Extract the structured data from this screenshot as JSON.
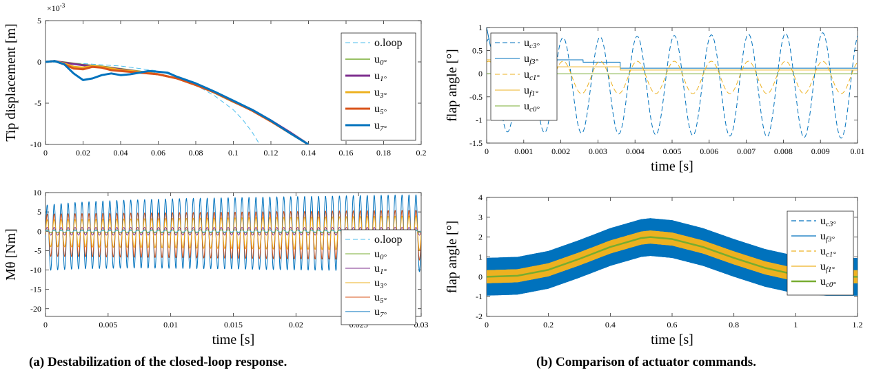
{
  "figure": {
    "caption_a": "(a) Destabilization of the closed-loop response.",
    "caption_b": "(b) Comparison of actuator commands."
  },
  "colors": {
    "o_loop": "#4DBEEE",
    "u0": "#77AC30",
    "u1": "#7E2F8E",
    "u3": "#EDB120",
    "u5": "#D95319",
    "u7": "#0072BD",
    "uc3": "#0072BD",
    "uf3": "#0072BD",
    "uc1": "#EDB120",
    "uf1": "#EDB120",
    "uc0": "#77AC30"
  },
  "chart_data": [
    {
      "id": "a-top",
      "type": "line",
      "xlabel": "",
      "ylabel": "Tip displacement [m]",
      "exponent_label": "×10",
      "exponent_power": "-3",
      "xlim": [
        0,
        0.2
      ],
      "ylim": [
        -10,
        5
      ],
      "xticks": [
        "0",
        "0.02",
        "0.04",
        "0.06",
        "0.08",
        "0.1",
        "0.12",
        "0.14",
        "0.16",
        "0.18",
        "0.2"
      ],
      "yticks": [
        "5",
        "0",
        "-5",
        "-10"
      ],
      "grid": false,
      "legend_position": "top-right",
      "series": [
        {
          "name": "o.loop",
          "color_key": "o_loop",
          "dash": true,
          "width": 1,
          "x": [
            0,
            0.02,
            0.04,
            0.06,
            0.07,
            0.08,
            0.09,
            0.1,
            0.105,
            0.11,
            0.114
          ],
          "y": [
            0,
            -0.2,
            -0.5,
            -1.1,
            -1.8,
            -2.8,
            -4.1,
            -5.8,
            -7.0,
            -8.5,
            -10
          ]
        },
        {
          "name": "u0°",
          "color_key": "u0",
          "dash": false,
          "width": 1.5,
          "x": [
            0,
            0.005,
            0.01,
            0.02,
            0.03,
            0.04,
            0.05,
            0.06,
            0.07,
            0.08,
            0.09,
            0.1,
            0.11,
            0.12,
            0.13,
            0.14
          ],
          "y": [
            0,
            0.1,
            0,
            -0.3,
            -0.5,
            -0.8,
            -1.1,
            -1.5,
            -2.0,
            -2.8,
            -3.8,
            -4.9,
            -5.9,
            -7.2,
            -8.6,
            -10
          ]
        },
        {
          "name": "u1°",
          "color_key": "u1",
          "dash": false,
          "width": 3,
          "x": [
            0,
            0.005,
            0.01,
            0.02,
            0.03,
            0.04,
            0.05,
            0.06,
            0.07,
            0.08,
            0.09,
            0.1,
            0.11,
            0.12,
            0.13,
            0.14
          ],
          "y": [
            0,
            0.1,
            -0.1,
            -0.4,
            -0.6,
            -0.9,
            -1.2,
            -1.5,
            -2.0,
            -2.8,
            -3.7,
            -4.8,
            -5.8,
            -7.1,
            -8.5,
            -10
          ]
        },
        {
          "name": "u3°",
          "color_key": "u3",
          "dash": false,
          "width": 3,
          "x": [
            0,
            0.005,
            0.01,
            0.015,
            0.02,
            0.025,
            0.03,
            0.04,
            0.05,
            0.06,
            0.07,
            0.08,
            0.09,
            0.1,
            0.11,
            0.12,
            0.13,
            0.14
          ],
          "y": [
            0,
            0.1,
            -0.2,
            -0.6,
            -0.7,
            -0.5,
            -0.6,
            -1.0,
            -1.2,
            -1.5,
            -2.0,
            -2.8,
            -3.7,
            -4.8,
            -5.9,
            -7.2,
            -8.6,
            -10
          ]
        },
        {
          "name": "u5°",
          "color_key": "u5",
          "dash": false,
          "width": 3,
          "x": [
            0,
            0.005,
            0.01,
            0.015,
            0.02,
            0.025,
            0.03,
            0.035,
            0.04,
            0.05,
            0.06,
            0.07,
            0.08,
            0.09,
            0.1,
            0.11,
            0.12,
            0.13,
            0.14
          ],
          "y": [
            0,
            0.1,
            -0.3,
            -0.8,
            -0.9,
            -0.6,
            -0.7,
            -1.0,
            -1.1,
            -1.3,
            -1.5,
            -2.0,
            -2.8,
            -3.7,
            -4.8,
            -5.9,
            -7.2,
            -8.6,
            -10
          ]
        },
        {
          "name": "u7°",
          "color_key": "u7",
          "dash": false,
          "width": 3,
          "x": [
            0,
            0.005,
            0.01,
            0.015,
            0.02,
            0.025,
            0.03,
            0.035,
            0.04,
            0.045,
            0.05,
            0.055,
            0.06,
            0.065,
            0.07,
            0.08,
            0.09,
            0.1,
            0.11,
            0.12,
            0.13,
            0.14
          ],
          "y": [
            0,
            0.1,
            -0.3,
            -1.4,
            -2.2,
            -2.0,
            -1.6,
            -1.4,
            -1.6,
            -1.5,
            -1.3,
            -1.1,
            -1.2,
            -1.3,
            -1.8,
            -2.6,
            -3.6,
            -4.7,
            -5.8,
            -7.1,
            -8.6,
            -10
          ]
        }
      ]
    },
    {
      "id": "a-bottom",
      "type": "line",
      "xlabel": "time [s]",
      "ylabel": "Mθ [Nm]",
      "xlim": [
        0,
        0.03
      ],
      "ylim": [
        -22,
        10
      ],
      "xticks": [
        "0",
        "0.005",
        "0.01",
        "0.015",
        "0.02",
        "0.025",
        "0.03"
      ],
      "yticks": [
        "10",
        "5",
        "0",
        "-5",
        "-10",
        "-15",
        "-20"
      ],
      "grid": false,
      "legend_position": "bottom-right",
      "oscillation_frequency_hz": 1800,
      "series": [
        {
          "name": "o.loop",
          "color_key": "o_loop",
          "dash": true,
          "width": 1,
          "offset": 0,
          "amplitude": [
            0.2,
            0.2
          ]
        },
        {
          "name": "u0°",
          "color_key": "u0",
          "dash": false,
          "width": 1,
          "offset": 0,
          "amplitude": [
            0.4,
            0.4
          ]
        },
        {
          "name": "u1°",
          "color_key": "u1",
          "dash": false,
          "width": 1,
          "offset": 0,
          "amplitude": [
            1.0,
            1.0
          ]
        },
        {
          "name": "u3°",
          "color_key": "u3",
          "dash": false,
          "width": 1,
          "offset": -0.5,
          "amplitude": [
            3.5,
            4.5
          ]
        },
        {
          "name": "u5°",
          "color_key": "u5",
          "dash": false,
          "width": 1,
          "offset": -1,
          "amplitude": [
            5.5,
            6.5
          ]
        },
        {
          "name": "u7°",
          "color_key": "u7",
          "dash": false,
          "width": 1,
          "offset": -0.5,
          "amplitude": [
            8.5,
            10
          ]
        }
      ]
    },
    {
      "id": "b-top",
      "type": "line",
      "xlabel": "time [s]",
      "ylabel": "flap angle [°]",
      "xlim": [
        0,
        0.01
      ],
      "ylim": [
        -1.5,
        1
      ],
      "xticks": [
        "0",
        "0.001",
        "0.002",
        "0.003",
        "0.004",
        "0.005",
        "0.006",
        "0.007",
        "0.008",
        "0.009",
        "0.01"
      ],
      "yticks": [
        "1",
        "0.5",
        "0",
        "-0.5",
        "-1",
        "-1.5"
      ],
      "grid": false,
      "legend_position": "top-left",
      "oscillation_frequency_hz": 1000,
      "series": [
        {
          "name": "uc3°",
          "color_key": "uc3",
          "dash": true,
          "width": 1,
          "kind": "osc",
          "offset": -0.25,
          "amplitude": [
            1.0,
            1.15
          ]
        },
        {
          "name": "uf3°",
          "color_key": "uf3",
          "dash": false,
          "width": 1,
          "kind": "step",
          "x": [
            0,
            0.0001,
            0.0003,
            0.0017,
            0.0017,
            0.0026,
            0.0026,
            0.0036,
            0.0036,
            0.01
          ],
          "y": [
            1.0,
            0.6,
            0.38,
            0.38,
            0.3,
            0.3,
            0.25,
            0.25,
            0.12,
            0.12
          ]
        },
        {
          "name": "uc1°",
          "color_key": "uc1",
          "dash": true,
          "width": 1,
          "kind": "osc",
          "offset": -0.08,
          "amplitude": [
            0.35,
            0.35
          ]
        },
        {
          "name": "uf1°",
          "color_key": "uf1",
          "dash": false,
          "width": 1,
          "kind": "step",
          "x": [
            0,
            0.0003,
            0.0003,
            0.0017,
            0.0017,
            0.0036,
            0.0036,
            0.01
          ],
          "y": [
            0.3,
            0.3,
            0.2,
            0.2,
            0.15,
            0.15,
            0.08,
            0.08
          ]
        },
        {
          "name": "uc0°",
          "color_key": "uc0",
          "dash": false,
          "width": 1,
          "kind": "const",
          "value": 0
        }
      ]
    },
    {
      "id": "b-bottom",
      "type": "line",
      "xlabel": "time [s]",
      "ylabel": "flap angle [°]",
      "xlim": [
        0,
        1.2
      ],
      "ylim": [
        -2,
        4
      ],
      "xticks": [
        "0",
        "0.2",
        "0.4",
        "0.6",
        "0.8",
        "1",
        "1.2"
      ],
      "yticks": [
        "4",
        "3",
        "2",
        "1",
        "0",
        "-1",
        "-2"
      ],
      "grid": false,
      "legend_position": "right",
      "series": [
        {
          "name": "uc3°",
          "color_key": "uc3",
          "dash": true,
          "width": 1,
          "kind": "band",
          "half_width": 0.95
        },
        {
          "name": "uf3°",
          "color_key": "uf3",
          "dash": false,
          "width": 1,
          "kind": "band",
          "half_width": 0.95
        },
        {
          "name": "uc1°",
          "color_key": "uc1",
          "dash": true,
          "width": 1,
          "kind": "band",
          "half_width": 0.33
        },
        {
          "name": "uf1°",
          "color_key": "uf1",
          "dash": false,
          "width": 1,
          "kind": "band",
          "half_width": 0.33
        },
        {
          "name": "uc0°",
          "color_key": "uc0",
          "dash": false,
          "width": 2.5,
          "kind": "center",
          "x": [
            0,
            0.1,
            0.2,
            0.3,
            0.4,
            0.5,
            0.53,
            0.6,
            0.7,
            0.8,
            0.9,
            1.0,
            1.1,
            1.2
          ],
          "y": [
            0,
            0.05,
            0.35,
            0.9,
            1.5,
            1.95,
            2.0,
            1.9,
            1.5,
            0.95,
            0.45,
            0.1,
            0.0,
            0.0
          ]
        }
      ]
    }
  ]
}
